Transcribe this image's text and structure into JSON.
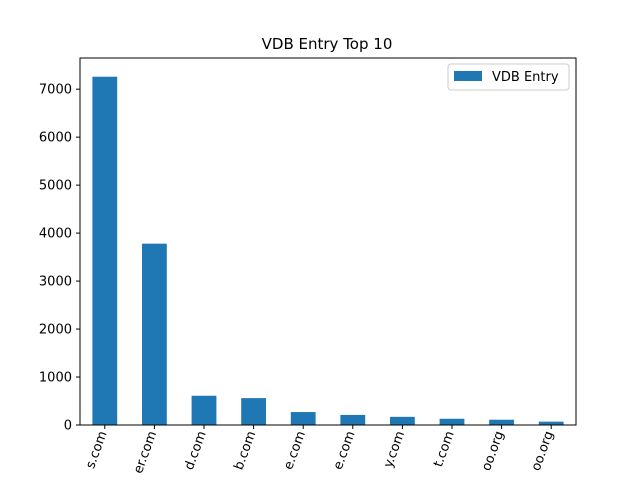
{
  "chart_data": {
    "type": "bar",
    "title": "VDB Entry Top 10",
    "xlabel": "",
    "ylabel": "",
    "categories": [
      "s.com",
      "er.com",
      "d.com",
      "b.com",
      "e.com",
      "e.com",
      "y.com",
      "t.com",
      "oo.org",
      "oo.org"
    ],
    "series": [
      {
        "name": "VDB Entry",
        "color": "#1f77b4",
        "values": [
          7260,
          3780,
          610,
          560,
          270,
          210,
          170,
          130,
          110,
          70
        ]
      }
    ],
    "ylim": [
      0,
      7650
    ],
    "yticks": [
      0,
      1000,
      2000,
      3000,
      4000,
      5000,
      6000,
      7000
    ],
    "grid": false,
    "legend_position": "top-right",
    "x_tick_rotation": "rotated"
  }
}
